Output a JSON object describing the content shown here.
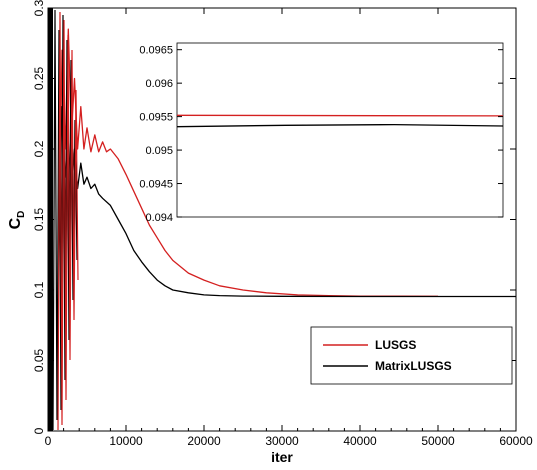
{
  "chart_data": [
    {
      "type": "line",
      "xlabel": "iter",
      "ylabel": "C",
      "ylabel_subscript": "D",
      "xlim": [
        0,
        60000
      ],
      "ylim": [
        0,
        0.3
      ],
      "x_ticks": [
        "0",
        "10000",
        "20000",
        "30000",
        "40000",
        "50000",
        "60000"
      ],
      "y_ticks": [
        "0",
        "0.05",
        "0.1",
        "0.15",
        "0.2",
        "0.25",
        "0.3"
      ],
      "legend_placement": "bottom-right",
      "grid": false,
      "series": [
        {
          "name": "LUSGS",
          "color": "#d42020",
          "x": [
            1500,
            1800,
            2200,
            2600,
            3000,
            3400,
            3800,
            4200,
            4600,
            5000,
            5500,
            6000,
            6500,
            7000,
            7500,
            8000,
            9000,
            10000,
            11000,
            12000,
            13000,
            14000,
            15000,
            16000,
            18000,
            20000,
            22000,
            25000,
            28000,
            32000,
            36000,
            40000,
            45000,
            50000
          ],
          "y": [
            0.16,
            0.27,
            0.2,
            0.285,
            0.21,
            0.25,
            0.2,
            0.23,
            0.2,
            0.215,
            0.198,
            0.21,
            0.198,
            0.205,
            0.198,
            0.2,
            0.193,
            0.182,
            0.17,
            0.158,
            0.146,
            0.137,
            0.128,
            0.121,
            0.112,
            0.107,
            0.103,
            0.1,
            0.098,
            0.0965,
            0.096,
            0.0957,
            0.0956,
            0.0955
          ]
        },
        {
          "name": "MatrixLUSGS",
          "color": "#000000",
          "x": [
            1500,
            1800,
            2200,
            2600,
            3000,
            3400,
            3800,
            4200,
            4600,
            5000,
            5500,
            6000,
            6500,
            7000,
            8000,
            9000,
            10000,
            11000,
            12000,
            13000,
            14000,
            15000,
            16000,
            18000,
            20000,
            22000,
            25000,
            30000,
            40000,
            50000,
            60000
          ],
          "y": [
            0.16,
            0.23,
            0.18,
            0.205,
            0.17,
            0.2,
            0.172,
            0.19,
            0.175,
            0.18,
            0.172,
            0.175,
            0.168,
            0.165,
            0.16,
            0.15,
            0.14,
            0.128,
            0.12,
            0.113,
            0.107,
            0.103,
            0.1,
            0.098,
            0.0965,
            0.096,
            0.0957,
            0.0955,
            0.0954,
            0.0954,
            0.0954
          ]
        }
      ]
    },
    {
      "type": "line",
      "role": "inset",
      "ylim": [
        0.094,
        0.0966
      ],
      "y_ticks": [
        "0.094",
        "0.0945",
        "0.095",
        "0.0955",
        "0.096",
        "0.0965"
      ],
      "grid": false,
      "series": [
        {
          "name": "LUSGS",
          "color": "#d42020",
          "y": [
            0.09552,
            0.09551
          ]
        },
        {
          "name": "MatrixLUSGS",
          "color": "#000000",
          "y": [
            0.09535,
            0.09537,
            0.09538,
            0.09536
          ]
        }
      ]
    }
  ]
}
